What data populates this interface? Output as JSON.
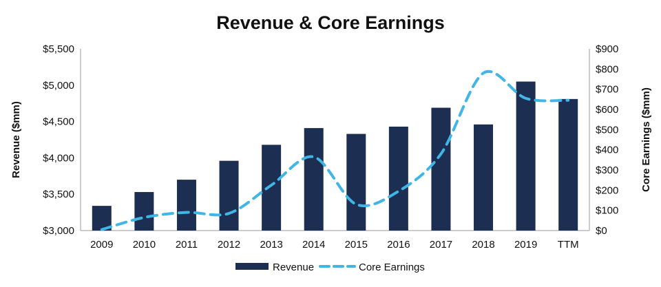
{
  "chart_data": {
    "type": "bar",
    "title": "Revenue & Core Earnings",
    "categories": [
      "2009",
      "2010",
      "2011",
      "2012",
      "2013",
      "2014",
      "2015",
      "2016",
      "2017",
      "2018",
      "2019",
      "TTM"
    ],
    "series": [
      {
        "name": "Revenue",
        "type": "bar",
        "axis": "left",
        "color": "#1c2e52",
        "values": [
          3340,
          3530,
          3700,
          3960,
          4180,
          4410,
          4330,
          4430,
          4690,
          4460,
          5050,
          4810
        ]
      },
      {
        "name": "Core Earnings",
        "type": "line",
        "axis": "right",
        "color": "#3fb6e6",
        "style": "dashed",
        "values": [
          5,
          65,
          90,
          85,
          225,
          365,
          130,
          195,
          380,
          780,
          655,
          645
        ]
      }
    ],
    "y_left": {
      "label": "Revenue ($mm)",
      "range": [
        3000,
        5500
      ],
      "ticks": [
        3000,
        3500,
        4000,
        4500,
        5000,
        5500
      ],
      "tick_labels": [
        "$3,000",
        "$3,500",
        "$4,000",
        "$4,500",
        "$5,000",
        "$5,500"
      ]
    },
    "y_right": {
      "label": "Core Earnings ($mm)",
      "range": [
        0,
        900
      ],
      "ticks": [
        0,
        100,
        200,
        300,
        400,
        500,
        600,
        700,
        800,
        900
      ],
      "tick_labels": [
        "$0",
        "$100",
        "$200",
        "$300",
        "$400",
        "$500",
        "$600",
        "$700",
        "$800",
        "$900"
      ]
    },
    "grid": false,
    "legend_position": "bottom-center"
  }
}
